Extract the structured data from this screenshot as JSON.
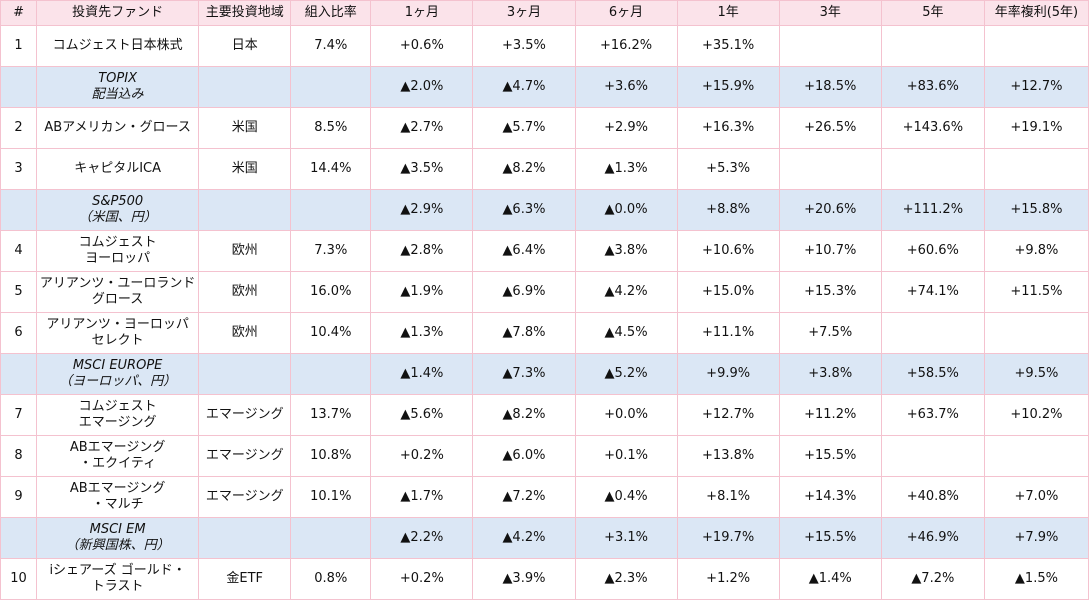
{
  "headers": [
    "#",
    "投資先ファンド",
    "主要投資地域",
    "組入比率",
    "1ヶ月",
    "3ヶ月",
    "6ヶ月",
    "1年",
    "3年",
    "5年",
    "年率複利(5年)"
  ],
  "rows": [
    {
      "type": "fund",
      "no": "1",
      "name": [
        "コムジェスト日本株式"
      ],
      "region": "日本",
      "weight": "7.4%",
      "cells": [
        "+0.6%",
        "+3.5%",
        "+16.2%",
        "+35.1%",
        null,
        null,
        null
      ]
    },
    {
      "type": "index",
      "no": "",
      "name": [
        "TOPIX",
        "配当込み"
      ],
      "region": null,
      "weight": null,
      "cells": [
        "▲2.0%",
        "▲4.7%",
        "+3.6%",
        "+15.9%",
        "+18.5%",
        "+83.6%",
        "+12.7%"
      ]
    },
    {
      "type": "fund",
      "no": "2",
      "name": [
        "ABアメリカン・グロース"
      ],
      "region": "米国",
      "weight": "8.5%",
      "cells": [
        "▲2.7%",
        "▲5.7%",
        "+2.9%",
        "+16.3%",
        "+26.5%",
        "+143.6%",
        "+19.1%"
      ]
    },
    {
      "type": "fund",
      "no": "3",
      "name": [
        "キャピタルICA"
      ],
      "region": "米国",
      "weight": "14.4%",
      "cells": [
        "▲3.5%",
        "▲8.2%",
        "▲1.3%",
        "+5.3%",
        null,
        null,
        null
      ]
    },
    {
      "type": "index",
      "no": "",
      "name": [
        "S&P500",
        "（米国、円）"
      ],
      "region": null,
      "weight": null,
      "cells": [
        "▲2.9%",
        "▲6.3%",
        "▲0.0%",
        "+8.8%",
        "+20.6%",
        "+111.2%",
        "+15.8%"
      ]
    },
    {
      "type": "fund",
      "no": "4",
      "name": [
        "コムジェスト",
        "ヨーロッパ"
      ],
      "region": "欧州",
      "weight": "7.3%",
      "cells": [
        "▲2.8%",
        "▲6.4%",
        "▲3.8%",
        "+10.6%",
        "+10.7%",
        "+60.6%",
        "+9.8%"
      ]
    },
    {
      "type": "fund",
      "no": "5",
      "name": [
        "アリアンツ・ユーロランド",
        "グロース"
      ],
      "region": "欧州",
      "weight": "16.0%",
      "cells": [
        "▲1.9%",
        "▲6.9%",
        "▲4.2%",
        "+15.0%",
        "+15.3%",
        "+74.1%",
        "+11.5%"
      ]
    },
    {
      "type": "fund",
      "no": "6",
      "name": [
        "アリアンツ・ヨーロッパ",
        "セレクト"
      ],
      "region": "欧州",
      "weight": "10.4%",
      "cells": [
        "▲1.3%",
        "▲7.8%",
        "▲4.5%",
        "+11.1%",
        "+7.5%",
        null,
        null
      ]
    },
    {
      "type": "index",
      "no": "",
      "name": [
        "MSCI EUROPE",
        "（ヨーロッパ、円）"
      ],
      "region": null,
      "weight": null,
      "cells": [
        "▲1.4%",
        "▲7.3%",
        "▲5.2%",
        "+9.9%",
        "+3.8%",
        "+58.5%",
        "+9.5%"
      ]
    },
    {
      "type": "fund",
      "no": "7",
      "name": [
        "コムジェスト",
        "エマージング"
      ],
      "region": "エマージング",
      "weight": "13.7%",
      "cells": [
        "▲5.6%",
        "▲8.2%",
        "+0.0%",
        "+12.7%",
        "+11.2%",
        "+63.7%",
        "+10.2%"
      ]
    },
    {
      "type": "fund",
      "no": "8",
      "name": [
        "ABエマージング",
        "・エクイティ"
      ],
      "region": "エマージング",
      "weight": "10.8%",
      "cells": [
        "+0.2%",
        "▲6.0%",
        "+0.1%",
        "+13.8%",
        "+15.5%",
        null,
        null
      ]
    },
    {
      "type": "fund",
      "no": "9",
      "name": [
        "ABエマージング",
        "・マルチ"
      ],
      "region": "エマージング",
      "weight": "10.1%",
      "cells": [
        "▲1.7%",
        "▲7.2%",
        "▲0.4%",
        "+8.1%",
        "+14.3%",
        "+40.8%",
        "+7.0%"
      ]
    },
    {
      "type": "index",
      "no": "",
      "name": [
        "MSCI EM",
        "（新興国株、円）"
      ],
      "region": null,
      "weight": null,
      "cells": [
        "▲2.2%",
        "▲4.2%",
        "+3.1%",
        "+19.7%",
        "+15.5%",
        "+46.9%",
        "+7.9%"
      ]
    },
    {
      "type": "fund",
      "no": "10",
      "name": [
        "iシェアーズ ゴールド・",
        "トラスト"
      ],
      "region": "金ETF",
      "weight": "0.8%",
      "cells": [
        "+0.2%",
        "▲3.9%",
        "▲2.3%",
        "+1.2%",
        "▲1.4%",
        "▲7.2%",
        "▲1.5%"
      ]
    }
  ],
  "colors": {
    "header_bg": "#fbe3ea",
    "grid": "#f4c2cf",
    "index_row_bg": "#dbe7f5",
    "fund_row_bg": "#ffffff"
  }
}
